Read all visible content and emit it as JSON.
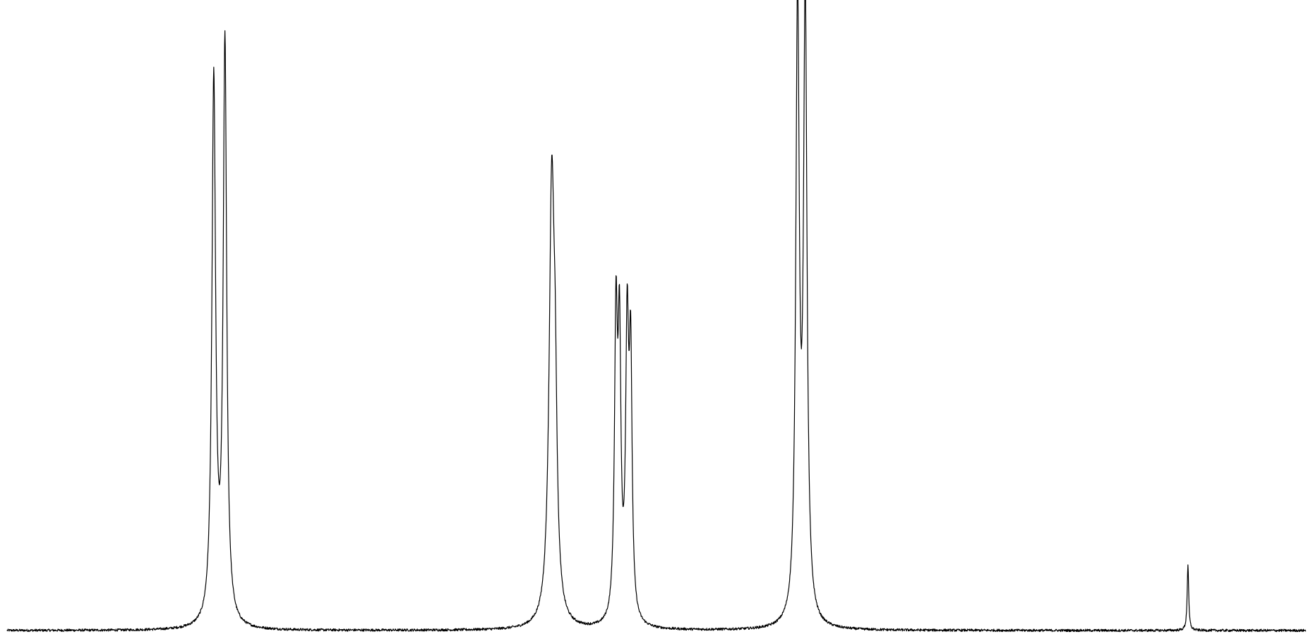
{
  "chart_data": {
    "type": "line",
    "title": "",
    "xlabel": "",
    "ylabel": "",
    "axes_visible": false,
    "grid": false,
    "legend": "none",
    "line_color": "#000000",
    "background_color": "#ffffff",
    "x_range": [
      0,
      1860
    ],
    "y_range": [
      0,
      1.0
    ],
    "baseline": 0.0,
    "noise_amplitude": 0.004,
    "peaks": [
      {
        "x": 296,
        "height": 0.87,
        "width": 3.2
      },
      {
        "x": 312,
        "height": 0.93,
        "width": 3.0
      },
      {
        "x": 780,
        "height": 0.7,
        "width": 4.5
      },
      {
        "x": 785,
        "height": 0.23,
        "width": 3.0
      },
      {
        "x": 872,
        "height": 0.47,
        "width": 2.6
      },
      {
        "x": 877,
        "height": 0.42,
        "width": 2.4
      },
      {
        "x": 888,
        "height": 0.45,
        "width": 2.6
      },
      {
        "x": 893,
        "height": 0.4,
        "width": 2.4
      },
      {
        "x": 1132,
        "height": 0.985,
        "width": 3.0
      },
      {
        "x": 1143,
        "height": 0.99,
        "width": 3.0
      },
      {
        "x": 1691,
        "height": 0.105,
        "width": 1.3
      }
    ]
  }
}
